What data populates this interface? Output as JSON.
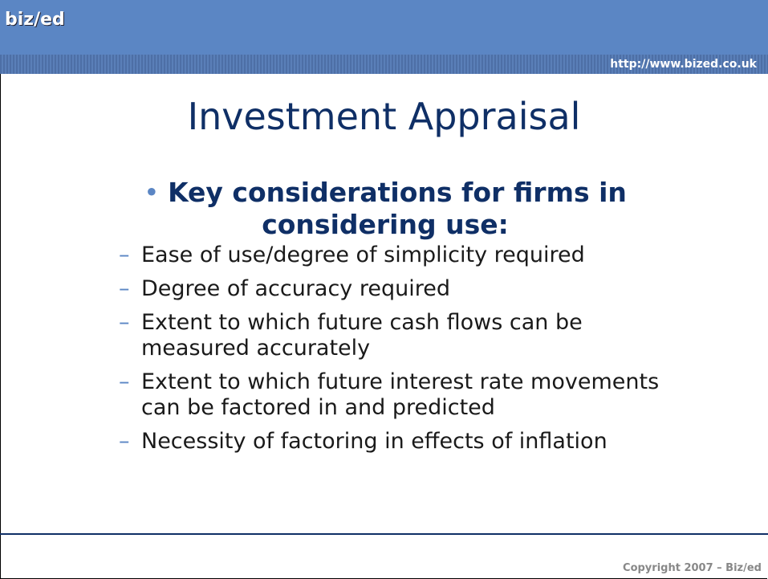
{
  "header": {
    "logo": "biz/ed",
    "url": "http://www.bized.co.uk"
  },
  "title": "Investment Appraisal",
  "main_point": "Key considerations for firms in considering use:",
  "sub_points": [
    "Ease of use/degree of simplicity required",
    "Degree of accuracy required",
    "Extent to which future cash flows can be measured accurately",
    "Extent to which future interest rate movements can be factored in and predicted",
    "Necessity of factoring in effects of inflation"
  ],
  "footer": {
    "copyright": "Copyright 2007 – Biz/ed"
  }
}
